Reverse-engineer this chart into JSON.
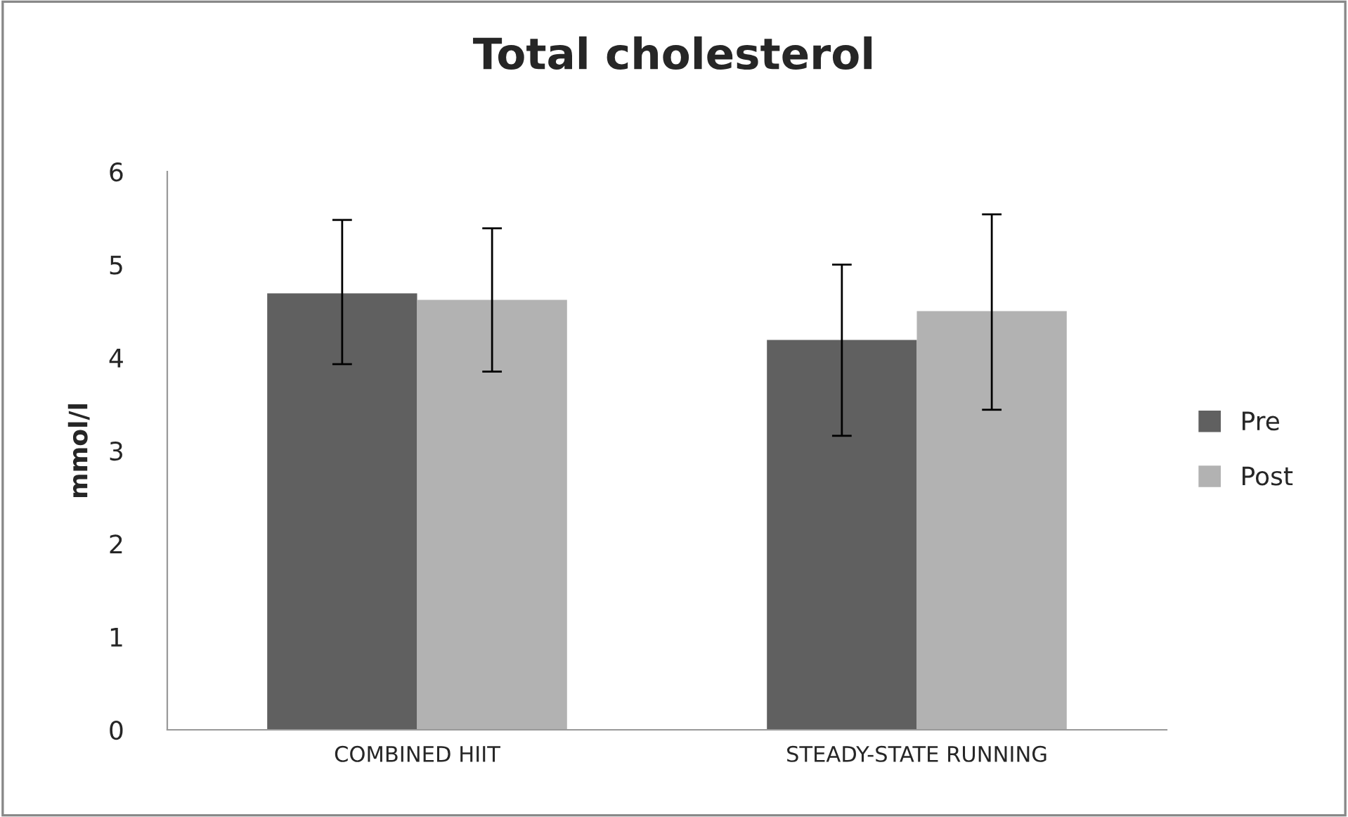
{
  "chart_data": {
    "type": "bar",
    "title": "Total cholesterol",
    "ylabel": "mmol/l",
    "categories": [
      "COMBINED HIIT",
      "STEADY-STATE RUNNING"
    ],
    "series": [
      {
        "name": "Pre",
        "color": "#606060",
        "values": [
          4.69,
          4.19
        ],
        "errors": [
          [
            3.93,
            5.48
          ],
          [
            3.16,
            5.0
          ]
        ]
      },
      {
        "name": "Post",
        "color": "#b2b2b2",
        "values": [
          4.62,
          4.5
        ],
        "errors": [
          [
            3.85,
            5.39
          ],
          [
            3.44,
            5.54
          ]
        ]
      }
    ],
    "ylim": [
      0,
      6
    ],
    "yticks": [
      0,
      1,
      2,
      3,
      4,
      5,
      6
    ],
    "grid": false,
    "legend": "right"
  }
}
